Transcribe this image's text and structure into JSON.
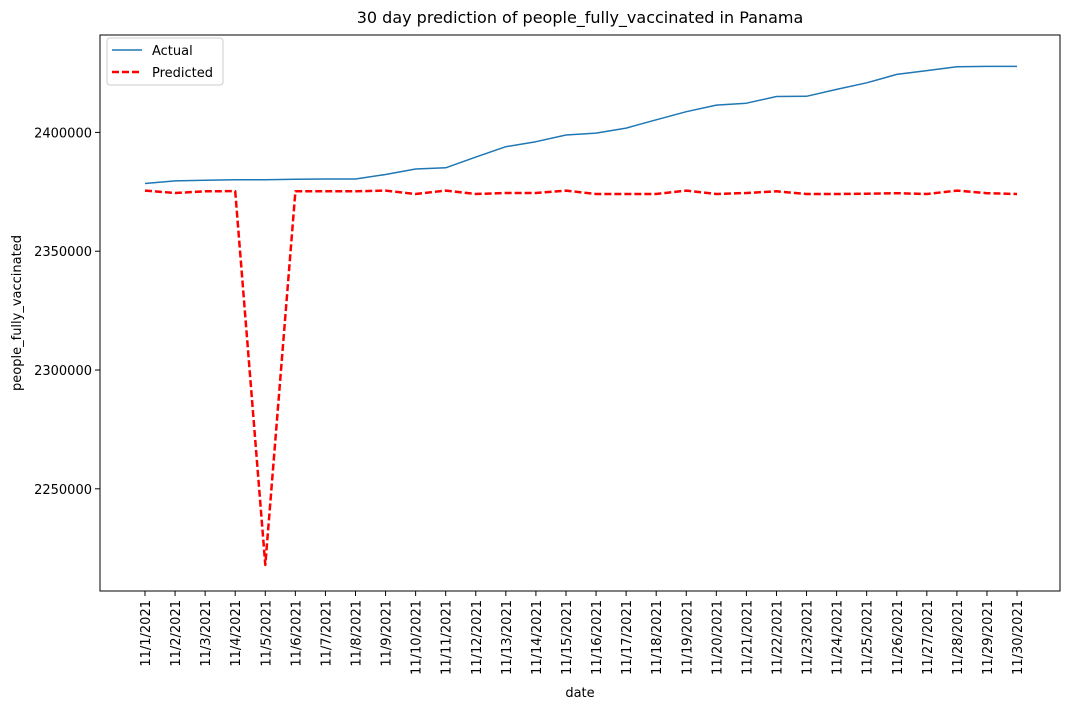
{
  "chart_data": {
    "type": "line",
    "title": "30 day prediction of people_fully_vaccinated in Panama",
    "xlabel": "date",
    "ylabel": "people_fully_vaccinated",
    "categories": [
      "11/1/2021",
      "11/2/2021",
      "11/3/2021",
      "11/4/2021",
      "11/5/2021",
      "11/6/2021",
      "11/7/2021",
      "11/8/2021",
      "11/9/2021",
      "11/10/2021",
      "11/11/2021",
      "11/12/2021",
      "11/13/2021",
      "11/14/2021",
      "11/15/2021",
      "11/16/2021",
      "11/17/2021",
      "11/18/2021",
      "11/19/2021",
      "11/20/2021",
      "11/21/2021",
      "11/22/2021",
      "11/23/2021",
      "11/24/2021",
      "11/25/2021",
      "11/26/2021",
      "11/27/2021",
      "11/28/2021",
      "11/29/2021",
      "11/30/2021"
    ],
    "yticks": [
      2250000,
      2300000,
      2350000,
      2400000
    ],
    "ylim": [
      2207000,
      2441000
    ],
    "grid": false,
    "legend_position": "top-left",
    "series": [
      {
        "name": "Actual",
        "color": "#1f77b4",
        "style": "solid",
        "values": [
          2378500,
          2379600,
          2379900,
          2380100,
          2380100,
          2380300,
          2380400,
          2380400,
          2382300,
          2384600,
          2385100,
          2389600,
          2394000,
          2396100,
          2398900,
          2399700,
          2401800,
          2405300,
          2408700,
          2411500,
          2412300,
          2415100,
          2415200,
          2418100,
          2420900,
          2424400,
          2426000,
          2427600,
          2427800,
          2427800
        ]
      },
      {
        "name": "Predicted",
        "color": "#ff0000",
        "style": "dashed",
        "values": [
          2375500,
          2374500,
          2375200,
          2375300,
          2218000,
          2375200,
          2375200,
          2375200,
          2375500,
          2374100,
          2375500,
          2374100,
          2374500,
          2374500,
          2375500,
          2374100,
          2374100,
          2374100,
          2375500,
          2374100,
          2374500,
          2375200,
          2374100,
          2374100,
          2374200,
          2374400,
          2374100,
          2375500,
          2374400,
          2374100
        ]
      }
    ]
  }
}
